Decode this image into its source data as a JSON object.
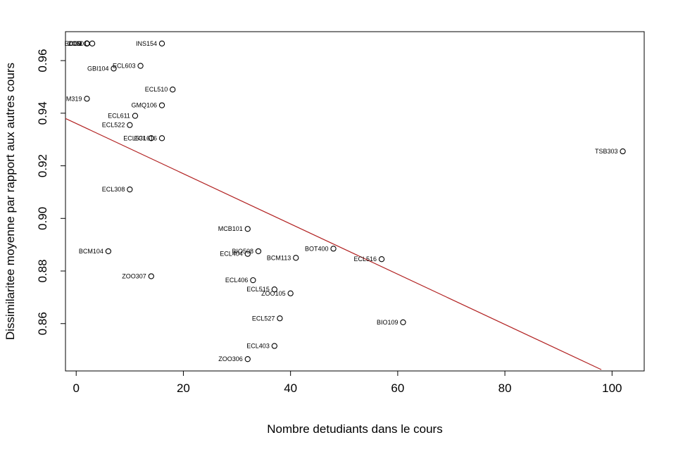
{
  "chart_data": {
    "type": "scatter",
    "title": "",
    "xlabel": "Nombre detudiants dans le cours",
    "ylabel": "Dissimilaritee moyenne par rapport aux autres cours",
    "xlim": [
      -2,
      106
    ],
    "ylim": [
      0.842,
      0.971
    ],
    "x_ticks": [
      0,
      20,
      40,
      60,
      80,
      100
    ],
    "y_ticks": [
      0.86,
      0.88,
      0.9,
      0.92,
      0.94,
      0.96
    ],
    "x_tick_labels": [
      "0",
      "20",
      "40",
      "60",
      "80",
      "100"
    ],
    "y_tick_labels": [
      "0.86",
      "0.88",
      "0.90",
      "0.92",
      "0.94",
      "0.96"
    ],
    "grid": false,
    "point_color": "#000000",
    "line_color": "#b22222",
    "regression_line": {
      "x": [
        -2,
        98
      ],
      "y": [
        0.938,
        0.8425
      ]
    },
    "points": [
      {
        "label": "ZOO",
        "x": 2,
        "y": 0.9665
      },
      {
        "label": "COM",
        "x": 2,
        "y": 0.9665
      },
      {
        "label": "CO1",
        "x": 2,
        "y": 0.9665
      },
      {
        "label": "ECL501",
        "x": 3,
        "y": 0.9665
      },
      {
        "label": "INS154",
        "x": 16,
        "y": 0.9665
      },
      {
        "label": "ECL603",
        "x": 12,
        "y": 0.958
      },
      {
        "label": "GBI104",
        "x": 7,
        "y": 0.957
      },
      {
        "label": "ECL510",
        "x": 18,
        "y": 0.949
      },
      {
        "label": "M319",
        "x": 2,
        "y": 0.9455
      },
      {
        "label": "GMQ106",
        "x": 16,
        "y": 0.943
      },
      {
        "label": "ECL611",
        "x": 11,
        "y": 0.939
      },
      {
        "label": "ECL522",
        "x": 10,
        "y": 0.9355
      },
      {
        "label": "ECL616",
        "x": 16,
        "y": 0.9305
      },
      {
        "label": "ECL531",
        "x": 14,
        "y": 0.9305
      },
      {
        "label": "TSB303",
        "x": 102,
        "y": 0.9255
      },
      {
        "label": "ECL308",
        "x": 10,
        "y": 0.911
      },
      {
        "label": "MCB101",
        "x": 32,
        "y": 0.896
      },
      {
        "label": "BOT400",
        "x": 48,
        "y": 0.8885
      },
      {
        "label": "BCM104",
        "x": 6,
        "y": 0.8875
      },
      {
        "label": "BIO508",
        "x": 34,
        "y": 0.8875
      },
      {
        "label": "ECL404",
        "x": 32,
        "y": 0.8865
      },
      {
        "label": "BCM113",
        "x": 41,
        "y": 0.885
      },
      {
        "label": "ECL516",
        "x": 57,
        "y": 0.8845
      },
      {
        "label": "ZOO307",
        "x": 14,
        "y": 0.878
      },
      {
        "label": "ECL406",
        "x": 33,
        "y": 0.8765
      },
      {
        "label": "ECL515",
        "x": 37,
        "y": 0.873
      },
      {
        "label": "ZOO105",
        "x": 40,
        "y": 0.8715
      },
      {
        "label": "ECL527",
        "x": 38,
        "y": 0.862
      },
      {
        "label": "BIO109",
        "x": 61,
        "y": 0.8605
      },
      {
        "label": "ECL403",
        "x": 37,
        "y": 0.8515
      },
      {
        "label": "ZOO306",
        "x": 32,
        "y": 0.8465
      }
    ]
  }
}
